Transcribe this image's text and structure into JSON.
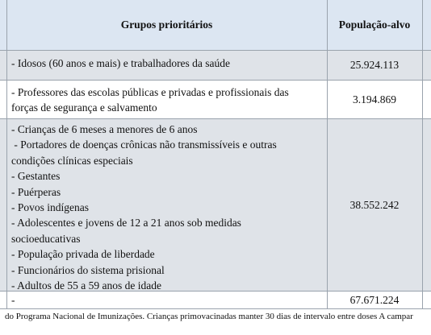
{
  "table": {
    "header": [
      "Grupos prioritários",
      "População-alvo"
    ],
    "rows": [
      [
        [
          "- Idosos (60 anos e mais) e trabalhadores da saúde"
        ],
        "25.924.113"
      ],
      [
        [
          "- Professores das escolas públicas e privadas e profissionais das",
          "forças de segurança e salvamento"
        ],
        "3.194.869"
      ],
      [
        [
          "- Crianças de 6 meses a menores de 6 anos",
          " - Portadores de doenças crônicas não transmissíveis e outras",
          "condições clínicas especiais",
          "- Gestantes",
          "- Puérperas",
          "- Povos indígenas",
          "- Adolescentes e jovens de 12 a 21 anos sob medidas",
          "socioeducativas",
          "- População privada de liberdade",
          "- Funcionários do sistema prisional",
          "- Adultos de 55 a 59 anos de idade"
        ],
        "38.552.242"
      ],
      [
        [
          "-"
        ],
        "67.671.224"
      ]
    ]
  },
  "footnote": "do Programa Nacional de Imunizações. Crianças primovacinadas manter 30 dias de intervalo entre doses A campar"
}
